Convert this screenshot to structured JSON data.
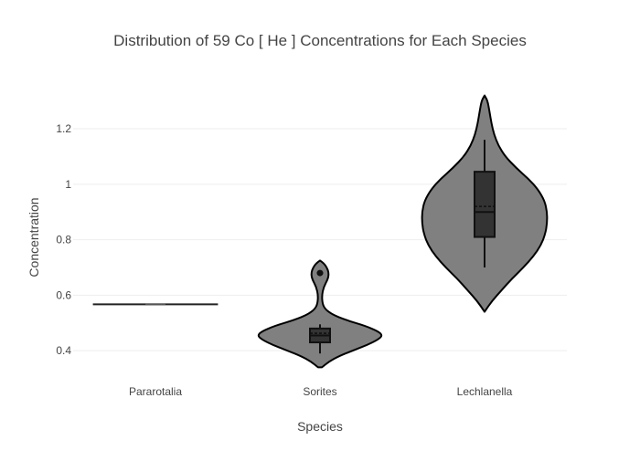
{
  "chart_data": {
    "type": "violin",
    "title": "Distribution of 59  Co  [ He ]  Concentrations for Each Species",
    "xlabel": "Species",
    "ylabel": "Concentration",
    "categories": [
      "Pararotalia",
      "Sorites",
      "Lechlanella"
    ],
    "yticks": [
      0.4,
      0.6,
      0.8,
      1,
      1.2
    ],
    "ytick_labels": [
      "0.4",
      "0.6",
      "0.8",
      "1",
      "1.2"
    ],
    "ylim": [
      0.315,
      1.335
    ],
    "grid": true,
    "legend": "none",
    "violin_color": "#808080",
    "box_color": "#333333",
    "series": [
      {
        "category": "Pararotalia",
        "values": [
          0.567
        ],
        "min": 0.567,
        "q1": 0.567,
        "median": 0.567,
        "q3": 0.567,
        "max": 0.567,
        "mean": 0.567,
        "outliers": []
      },
      {
        "category": "Sorites",
        "min": 0.39,
        "q1": 0.43,
        "median": 0.455,
        "q3": 0.48,
        "max": 0.495,
        "mean": 0.463,
        "outliers": [
          0.68
        ],
        "kde_range": [
          0.34,
          0.725
        ],
        "density": [
          [
            0.34,
            0.03
          ],
          [
            0.36,
            0.14
          ],
          [
            0.38,
            0.3
          ],
          [
            0.4,
            0.52
          ],
          [
            0.42,
            0.75
          ],
          [
            0.44,
            0.93
          ],
          [
            0.455,
            1.0
          ],
          [
            0.47,
            0.93
          ],
          [
            0.49,
            0.72
          ],
          [
            0.51,
            0.42
          ],
          [
            0.53,
            0.2
          ],
          [
            0.55,
            0.08
          ],
          [
            0.57,
            0.04
          ],
          [
            0.6,
            0.03
          ],
          [
            0.63,
            0.06
          ],
          [
            0.66,
            0.13
          ],
          [
            0.68,
            0.14
          ],
          [
            0.7,
            0.11
          ],
          [
            0.715,
            0.06
          ],
          [
            0.725,
            0.0
          ]
        ]
      },
      {
        "category": "Lechlanella",
        "min": 0.7,
        "q1": 0.81,
        "median": 0.9,
        "q3": 1.045,
        "max": 1.16,
        "mean": 0.92,
        "outliers": [],
        "kde_range": [
          0.54,
          1.32
        ],
        "density": [
          [
            0.54,
            0.0
          ],
          [
            0.58,
            0.12
          ],
          [
            0.62,
            0.28
          ],
          [
            0.66,
            0.44
          ],
          [
            0.7,
            0.62
          ],
          [
            0.74,
            0.78
          ],
          [
            0.78,
            0.9
          ],
          [
            0.82,
            0.97
          ],
          [
            0.86,
            1.0
          ],
          [
            0.9,
            1.0
          ],
          [
            0.94,
            0.96
          ],
          [
            0.98,
            0.86
          ],
          [
            1.02,
            0.7
          ],
          [
            1.06,
            0.5
          ],
          [
            1.1,
            0.33
          ],
          [
            1.14,
            0.22
          ],
          [
            1.18,
            0.15
          ],
          [
            1.22,
            0.11
          ],
          [
            1.26,
            0.08
          ],
          [
            1.3,
            0.05
          ],
          [
            1.32,
            0.0
          ]
        ]
      }
    ]
  }
}
